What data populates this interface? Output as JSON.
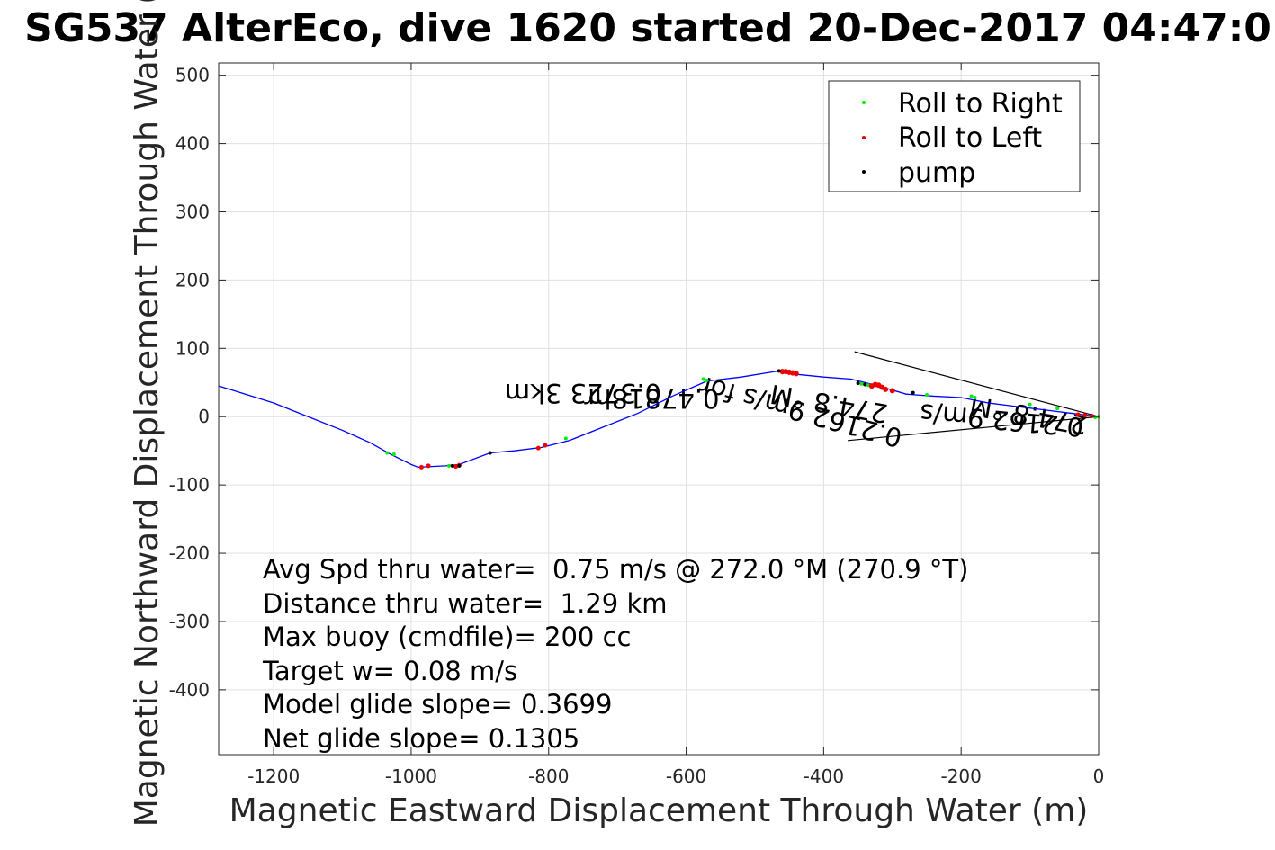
{
  "chart_data": {
    "type": "line",
    "title": "SG537 AlterEco, dive 1620 started 20-Dec-2017 04:47:0",
    "xlabel": "Magnetic Eastward Displacement Through Water (m)",
    "ylabel": "Magnetic Northward Displacement Through Water (",
    "xlim": [
      -1280,
      0
    ],
    "ylim": [
      -495,
      518
    ],
    "xticks": [
      -1200,
      -1000,
      -800,
      -600,
      -400,
      -200,
      0
    ],
    "yticks": [
      -400,
      -300,
      -200,
      -100,
      0,
      100,
      200,
      300,
      400,
      500
    ],
    "grid": true,
    "legend_position": "top-right",
    "legend": [
      {
        "label": "Roll to Right",
        "color": "#00ee00"
      },
      {
        "label": "Roll to Left",
        "color": "#ee0000"
      },
      {
        "label": "pump",
        "color": "#000000"
      }
    ],
    "track": {
      "color": "#0000ff",
      "x": [
        0,
        -40,
        -80,
        -120,
        -160,
        -200,
        -240,
        -280,
        -320,
        -360,
        -400,
        -440,
        -465,
        -520,
        -570,
        -620,
        -670,
        -720,
        -770,
        -810,
        -850,
        -885,
        -930,
        -950,
        -990,
        -1000,
        -1030,
        -1060,
        -1100,
        -1150,
        -1200,
        -1280
      ],
      "y": [
        0,
        5,
        10,
        15,
        20,
        28,
        30,
        33,
        45,
        55,
        58,
        62,
        67,
        58,
        52,
        30,
        5,
        -15,
        -35,
        -45,
        -50,
        -53,
        -70,
        -72,
        -74,
        -70,
        -55,
        -38,
        -20,
        0,
        20,
        45
      ]
    },
    "roll_right": {
      "x": [
        0,
        -5,
        -60,
        -100,
        -180,
        -185,
        -250,
        -335,
        -345,
        -570,
        -575,
        -775,
        -1025,
        -1035,
        -945
      ],
      "y": [
        0,
        -1,
        12,
        18,
        28,
        30,
        32,
        46,
        48,
        53,
        55,
        -32,
        -55,
        -53,
        -72
      ]
    },
    "roll_left": {
      "x": [
        -10,
        -20,
        -30,
        -300,
        -310,
        -315,
        -320,
        -325,
        -330,
        -440,
        -445,
        -450,
        -455,
        -460,
        -805,
        -815,
        -985,
        -975,
        -930,
        -935
      ],
      "y": [
        1,
        2,
        3,
        38,
        40,
        43,
        46,
        47,
        45,
        63,
        64,
        65,
        66,
        66,
        -42,
        -46,
        -74,
        -72,
        -71,
        -73
      ],
      "sizes": [
        2.5,
        2.5,
        2.5,
        3,
        3,
        3,
        3,
        3,
        3,
        3,
        3,
        3,
        3,
        3,
        2.5,
        2.5,
        2.5,
        2.5,
        2.5,
        2.5
      ]
    },
    "pump": {
      "x": [
        -270,
        -340,
        -350,
        -885,
        -930,
        -940,
        -465
      ],
      "y": [
        35,
        47,
        49,
        -53,
        -72,
        -72,
        67
      ]
    },
    "wind_annotation": {
      "lines": [
        {
          "x": [
            0,
            -355
          ],
          "y": [
            0,
            95
          ]
        },
        {
          "x": [
            0,
            -365
          ],
          "y": [
            0,
            -35
          ]
        }
      ],
      "labels": [
        {
          "text": "0.3723 3km",
          "x": -750,
          "y": 48,
          "rotation": 180
        },
        {
          "text": "0.47818hr",
          "x": -650,
          "y": 40,
          "rotation": 180
        },
        {
          "text": "0.2162 9m/s for",
          "x": -430,
          "y": 20,
          "rotation": 195
        },
        {
          "text": "274.8 °M",
          "x": -390,
          "y": 32,
          "rotation": 190
        },
        {
          "text": "274.8 °M",
          "x": -100,
          "y": 15,
          "rotation": 190
        },
        {
          "text": "0.2162 9m/s",
          "x": -140,
          "y": 8,
          "rotation": 185
        }
      ]
    },
    "annotations": [
      "Avg Spd thru water=  0.75 m/s @ 272.0 °M (270.9 °T)",
      "Distance thru water=  1.29 km",
      "Max buoy (cmdfile)= 200 cc",
      "Target w= 0.08 m/s",
      "Model glide slope= 0.3699",
      "Net glide slope= 0.1305"
    ]
  }
}
